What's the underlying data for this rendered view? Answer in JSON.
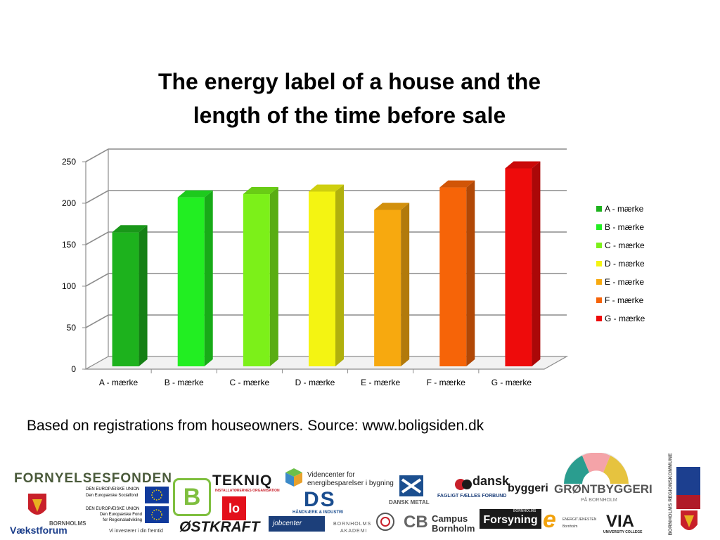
{
  "slide": {
    "title": "The energy label of a house and the\nlength of the time before sale",
    "source_note": "Based on registrations from houseowners. Source: www.boligsiden.dk"
  },
  "chart_data": {
    "type": "bar",
    "title": "",
    "xlabel": "",
    "ylabel": "",
    "ylim": [
      0,
      250
    ],
    "yticks": [
      0,
      50,
      100,
      150,
      200,
      250
    ],
    "grid": true,
    "style": "3d",
    "legend_position": "right",
    "categories": [
      "A - mærke",
      "B - mærke",
      "C - mærke",
      "D - mærke",
      "E - mærke",
      "F - mærke",
      "G - mærke"
    ],
    "values": [
      165,
      207,
      211,
      214,
      192,
      219,
      242
    ],
    "colors": [
      "#1db21d",
      "#22ee22",
      "#7cf019",
      "#f4f412",
      "#f7a90f",
      "#f66408",
      "#ee0b0b"
    ],
    "legend": [
      "A - mærke",
      "B - mærke",
      "C - mærke",
      "D - mærke",
      "E - mærke",
      "F - mærke",
      "G - mærke"
    ]
  },
  "logos": {
    "fornyelsesfonden": "FORNYELSESFONDEN",
    "eu_union_1": "DEN EUROPÆISKE UNION",
    "eu_fund_1": "Den Europæiske Socialfond",
    "eu_union_2": "DEN EUROPÆISKE UNION",
    "eu_fund_2a": "Den Europæiske Fond",
    "eu_fund_2b": "for Regionaludvikling",
    "bornholms": "BORNHOLMS",
    "vaekstforum": "Vækstforum",
    "vi_investerer": "Vi investerer i din fremtid",
    "b_logo": "B",
    "tekniq": "TEKNIQ",
    "tekniq_sub": "INSTALLATØRERNES ORGANISATION",
    "ostkraft": "ØSTKRAFT",
    "videncenter_1": "Videncenter for",
    "videncenter_2": "energibesparelser i bygning",
    "ds": "DS",
    "ds_sub": "HÅNDVÆRK & INDUSTRI",
    "jobcenter": "jobcenter",
    "bornholms_akademi_1": "BORNHOLMS",
    "bornholms_akademi_2": "AKADEMI",
    "dansk_metal": "DANSK METAL",
    "campus_1": "Campus",
    "campus_2": "Bornholm",
    "dansk_byggeri_1": "dansk",
    "dansk_byggeri_2": "byggeri",
    "3f": "FAGLIGT FÆLLES FORBUND",
    "forsyning": "Forsyning",
    "forsyning_top": "BORNHOLMS",
    "energitjenesten_1": "ENERGITJENESTEN",
    "energitjenesten_2": "Bornholm",
    "grontbyggeri": "GRØNTBYGGERI",
    "grontbyggeri_sub": "PÅ BORNHOLM",
    "via": "VIA",
    "via_sub": "UNIVERSITY COLLEGE",
    "bornholms_regionskommune": "BORNHOLMS REGIONSKOMMUNE"
  }
}
